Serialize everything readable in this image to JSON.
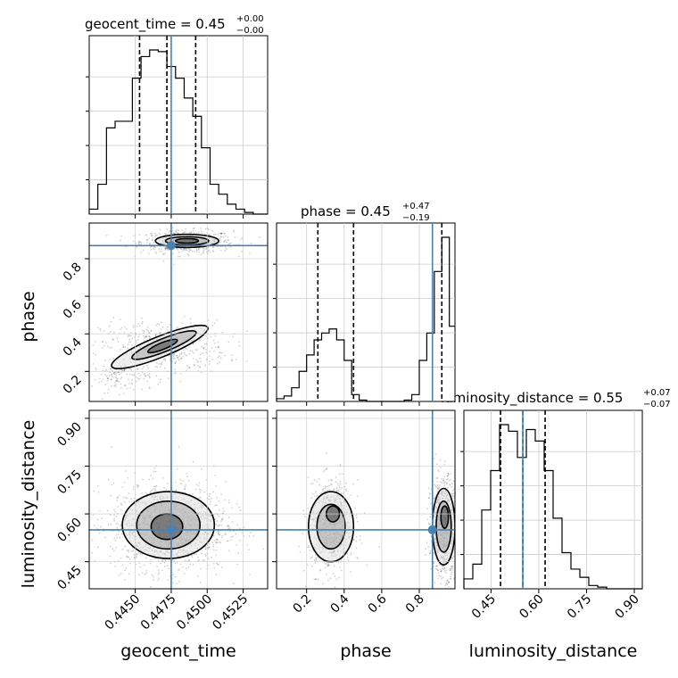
{
  "chart_data": {
    "type": "corner",
    "parameters": [
      "geocent_time",
      "phase",
      "luminosity_distance"
    ],
    "axis_labels": {
      "geocent_time": "geocent_time",
      "phase": "phase",
      "luminosity_distance": "luminosity_distance"
    },
    "truth": {
      "geocent_time": 0.4475,
      "phase": 0.87,
      "luminosity_distance": 0.55
    },
    "truth_color": "#4682b4",
    "titles": [
      {
        "parameter": "geocent_time",
        "prefix": "geocent_time = 0.45",
        "plus": "+0.00",
        "minus": "−0.00"
      },
      {
        "parameter": "phase",
        "prefix": "phase = 0.45",
        "plus": "+0.47",
        "minus": "−0.19"
      },
      {
        "parameter": "luminosity_distance",
        "prefix": "luminosity_distance = 0.55",
        "plus": "+0.07",
        "minus": "−0.07"
      }
    ],
    "ranges": {
      "geocent_time": [
        0.4418,
        0.4542
      ],
      "phase": [
        0.04,
        0.99
      ],
      "luminosity_distance": [
        0.365,
        0.925
      ]
    },
    "ticks": {
      "geocent_time": [
        "0.4450",
        "0.4475",
        "0.4500",
        "0.4525"
      ],
      "phase": [
        "0.2",
        "0.4",
        "0.6",
        "0.8"
      ],
      "luminosity_distance": [
        "0.45",
        "0.60",
        "0.75",
        "0.90"
      ]
    },
    "quantiles": {
      "geocent_time": [
        0.4453,
        0.4472,
        0.4492
      ],
      "phase": [
        0.26,
        0.45,
        0.92
      ],
      "luminosity_distance": [
        0.48,
        0.55,
        0.62
      ]
    },
    "histograms": {
      "geocent_time": {
        "edges": [
          0.4418,
          0.4424,
          0.443,
          0.4436,
          0.4442,
          0.4448,
          0.4454,
          0.446,
          0.4466,
          0.4472,
          0.4478,
          0.4484,
          0.449,
          0.4496,
          0.4502,
          0.4508,
          0.4514,
          0.452,
          0.4526,
          0.4532,
          0.4538,
          0.4542
        ],
        "counts": [
          3,
          18,
          52,
          56,
          56,
          82,
          95,
          99,
          98,
          89,
          82,
          70,
          59,
          40,
          18,
          12,
          6,
          3,
          1,
          0,
          0
        ]
      },
      "phase": {
        "edges": [
          0.04,
          0.08,
          0.12,
          0.16,
          0.2,
          0.24,
          0.28,
          0.32,
          0.36,
          0.4,
          0.44,
          0.48,
          0.52,
          0.56,
          0.6,
          0.64,
          0.68,
          0.72,
          0.76,
          0.8,
          0.84,
          0.88,
          0.92,
          0.96,
          0.99
        ],
        "counts": [
          2,
          4,
          10,
          22,
          34,
          45,
          50,
          53,
          45,
          30,
          5,
          1,
          0,
          0,
          0,
          0,
          0,
          1,
          5,
          30,
          50,
          95,
          120,
          55
        ]
      },
      "luminosity_distance": {
        "edges": [
          0.365,
          0.393,
          0.421,
          0.449,
          0.477,
          0.505,
          0.533,
          0.561,
          0.589,
          0.617,
          0.645,
          0.673,
          0.701,
          0.729,
          0.757,
          0.785,
          0.813,
          0.841,
          0.869,
          0.897,
          0.925
        ],
        "counts": [
          6,
          15,
          48,
          72,
          100,
          96,
          80,
          97,
          90,
          72,
          43,
          22,
          12,
          7,
          2,
          1,
          0,
          0,
          0,
          0
        ]
      }
    },
    "density_2d": [
      {
        "x": "geocent_time",
        "y": "phase",
        "blobs": [
          {
            "cx": 0.4486,
            "cy": 0.89,
            "sx": 0.0016,
            "sy": 0.03,
            "n": 600
          },
          {
            "cx": 0.447,
            "cy": 0.33,
            "sx": 0.0022,
            "sy": 0.07,
            "n": 500
          },
          {
            "cx": 0.444,
            "cy": 0.17,
            "sx": 0.001,
            "sy": 0.04,
            "n": 120
          }
        ],
        "contours": [
          {
            "cx": 0.4486,
            "cy": 0.895,
            "rx": 0.0022,
            "ry": 0.035
          },
          {
            "cx": 0.4486,
            "cy": 0.895,
            "rx": 0.0015,
            "ry": 0.022
          },
          {
            "cx": 0.4486,
            "cy": 0.895,
            "rx": 0.0008,
            "ry": 0.012
          },
          {
            "cx": 0.4467,
            "cy": 0.33,
            "rx": 0.0036,
            "ry": 0.055,
            "rotate": -22
          },
          {
            "cx": 0.447,
            "cy": 0.34,
            "rx": 0.0024,
            "ry": 0.035,
            "rotate": -22
          },
          {
            "cx": 0.4469,
            "cy": 0.335,
            "rx": 0.0011,
            "ry": 0.018,
            "rotate": -22
          }
        ]
      },
      {
        "x": "geocent_time",
        "y": "luminosity_distance",
        "blobs": [
          {
            "cx": 0.4473,
            "cy": 0.56,
            "sx": 0.002,
            "sy": 0.07,
            "n": 1400
          }
        ],
        "contours": [
          {
            "cx": 0.4473,
            "cy": 0.565,
            "rx": 0.0032,
            "ry": 0.105
          },
          {
            "cx": 0.4473,
            "cy": 0.565,
            "rx": 0.0022,
            "ry": 0.075
          },
          {
            "cx": 0.4472,
            "cy": 0.56,
            "rx": 0.0011,
            "ry": 0.04
          }
        ]
      },
      {
        "x": "phase",
        "y": "luminosity_distance",
        "blobs": [
          {
            "cx": 0.33,
            "cy": 0.56,
            "sx": 0.06,
            "sy": 0.07,
            "n": 700
          },
          {
            "cx": 0.93,
            "cy": 0.56,
            "sx": 0.035,
            "sy": 0.075,
            "n": 900
          }
        ],
        "contours": [
          {
            "cx": 0.33,
            "cy": 0.56,
            "rx": 0.12,
            "ry": 0.11
          },
          {
            "cx": 0.33,
            "cy": 0.56,
            "rx": 0.075,
            "ry": 0.07
          },
          {
            "cx": 0.34,
            "cy": 0.6,
            "rx": 0.035,
            "ry": 0.025
          },
          {
            "cx": 0.93,
            "cy": 0.56,
            "rx": 0.06,
            "ry": 0.12
          },
          {
            "cx": 0.93,
            "cy": 0.56,
            "rx": 0.04,
            "ry": 0.08
          },
          {
            "cx": 0.935,
            "cy": 0.59,
            "rx": 0.02,
            "ry": 0.035
          }
        ]
      }
    ],
    "grid": true
  }
}
